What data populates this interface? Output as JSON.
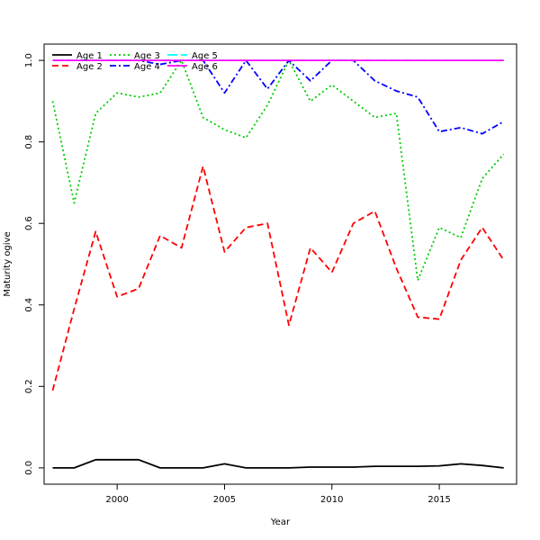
{
  "chart_data": {
    "type": "line",
    "title": "",
    "xlabel": "Year",
    "ylabel": "Maturity ogive",
    "xlim": [
      1996.6,
      2018.6
    ],
    "ylim": [
      -0.04,
      1.04
    ],
    "x_ticks": [
      2000,
      2005,
      2010,
      2015
    ],
    "y_ticks": [
      0.0,
      0.2,
      0.4,
      0.6,
      0.8,
      1.0
    ],
    "x_tick_labels": [
      "2000",
      "2005",
      "2010",
      "2015"
    ],
    "y_tick_labels": [
      "0.0",
      "0.2",
      "0.4",
      "0.6",
      "0.8",
      "1.0"
    ],
    "grid": false,
    "legend_position": "top-left",
    "x": [
      1997,
      1998,
      1999,
      2000,
      2001,
      2002,
      2003,
      2004,
      2005,
      2006,
      2007,
      2008,
      2009,
      2010,
      2011,
      2012,
      2013,
      2014,
      2015,
      2016,
      2017,
      2018
    ],
    "series": [
      {
        "name": "Age 1",
        "color": "#000000",
        "dash": "solid",
        "values": [
          0.0,
          0.0,
          0.02,
          0.02,
          0.02,
          0.0,
          0.0,
          0.0,
          0.01,
          0.0,
          0.0,
          0.0,
          0.002,
          0.002,
          0.002,
          0.004,
          0.004,
          0.004,
          0.005,
          0.01,
          0.006,
          0.0
        ]
      },
      {
        "name": "Age 2",
        "color": "#ff0000",
        "dash": "dashed",
        "values": [
          0.19,
          0.39,
          0.58,
          0.42,
          0.44,
          0.57,
          0.54,
          0.74,
          0.53,
          0.59,
          0.6,
          0.35,
          0.54,
          0.48,
          0.6,
          0.63,
          0.49,
          0.37,
          0.365,
          0.51,
          0.59,
          0.51
        ]
      },
      {
        "name": "Age 3",
        "color": "#00cd00",
        "dash": "dotted",
        "values": [
          0.9,
          0.65,
          0.87,
          0.92,
          0.91,
          0.92,
          1.0,
          0.86,
          0.83,
          0.81,
          0.89,
          1.0,
          0.9,
          0.94,
          0.9,
          0.86,
          0.87,
          0.46,
          0.59,
          0.565,
          0.71,
          0.77
        ]
      },
      {
        "name": "Age 4",
        "color": "#0000ff",
        "dash": "dotdash",
        "values": [
          1.0,
          1.0,
          1.0,
          1.0,
          1.0,
          0.99,
          1.0,
          1.0,
          0.92,
          1.0,
          0.93,
          1.0,
          0.95,
          1.0,
          1.0,
          0.95,
          0.925,
          0.91,
          0.825,
          0.835,
          0.82,
          0.85
        ]
      },
      {
        "name": "Age 5",
        "color": "#00ffff",
        "dash": "longdash",
        "values": [
          1.0,
          1.0,
          1.0,
          1.0,
          1.0,
          1.0,
          1.0,
          1.0,
          1.0,
          1.0,
          1.0,
          1.0,
          1.0,
          1.0,
          1.0,
          1.0,
          1.0,
          1.0,
          1.0,
          1.0,
          1.0,
          1.0
        ]
      },
      {
        "name": "Age 6",
        "color": "#ff00ff",
        "dash": "solid",
        "values": [
          1.0,
          1.0,
          1.0,
          1.0,
          1.0,
          1.0,
          1.0,
          1.0,
          1.0,
          1.0,
          1.0,
          1.0,
          1.0,
          1.0,
          1.0,
          1.0,
          1.0,
          1.0,
          1.0,
          1.0,
          1.0,
          1.0
        ]
      }
    ]
  }
}
